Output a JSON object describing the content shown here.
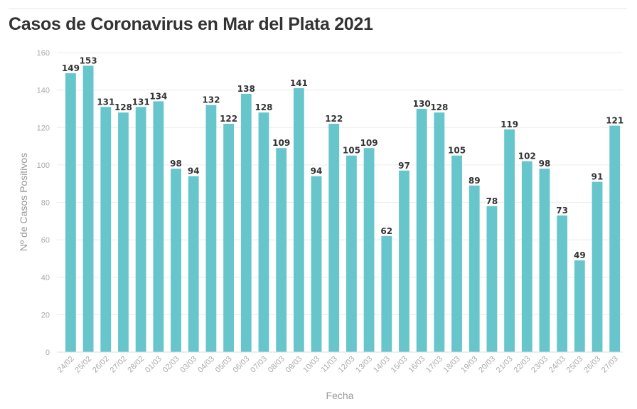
{
  "chart_data": {
    "type": "bar",
    "title": "Casos de Coronavirus en Mar del Plata 2021",
    "xlabel": "Fecha",
    "ylabel": "Nº de Casos Positivos",
    "ylim": [
      0,
      160
    ],
    "yticks": [
      0,
      20,
      40,
      60,
      80,
      100,
      120,
      140,
      160
    ],
    "grid": true,
    "colors": {
      "bar": "#67c5cc",
      "label": "#333333",
      "axis_text": "#aaaaaa"
    },
    "categories": [
      "24/02",
      "25/02",
      "26/02",
      "27/02",
      "28/02",
      "01/03",
      "02/03",
      "03/03",
      "04/03",
      "05/03",
      "06/03",
      "07/03",
      "08/03",
      "09/03",
      "10/03",
      "11/03",
      "12/03",
      "13/03",
      "14/03",
      "15/03",
      "16/03",
      "17/03",
      "18/03",
      "19/03",
      "20/03",
      "21/03",
      "22/03",
      "23/03",
      "24/03",
      "25/03",
      "26/03",
      "27/03"
    ],
    "values": [
      149,
      153,
      131,
      128,
      131,
      134,
      98,
      94,
      132,
      122,
      138,
      128,
      109,
      141,
      94,
      122,
      105,
      109,
      62,
      97,
      130,
      128,
      105,
      89,
      78,
      119,
      102,
      98,
      73,
      49,
      91,
      121
    ]
  }
}
